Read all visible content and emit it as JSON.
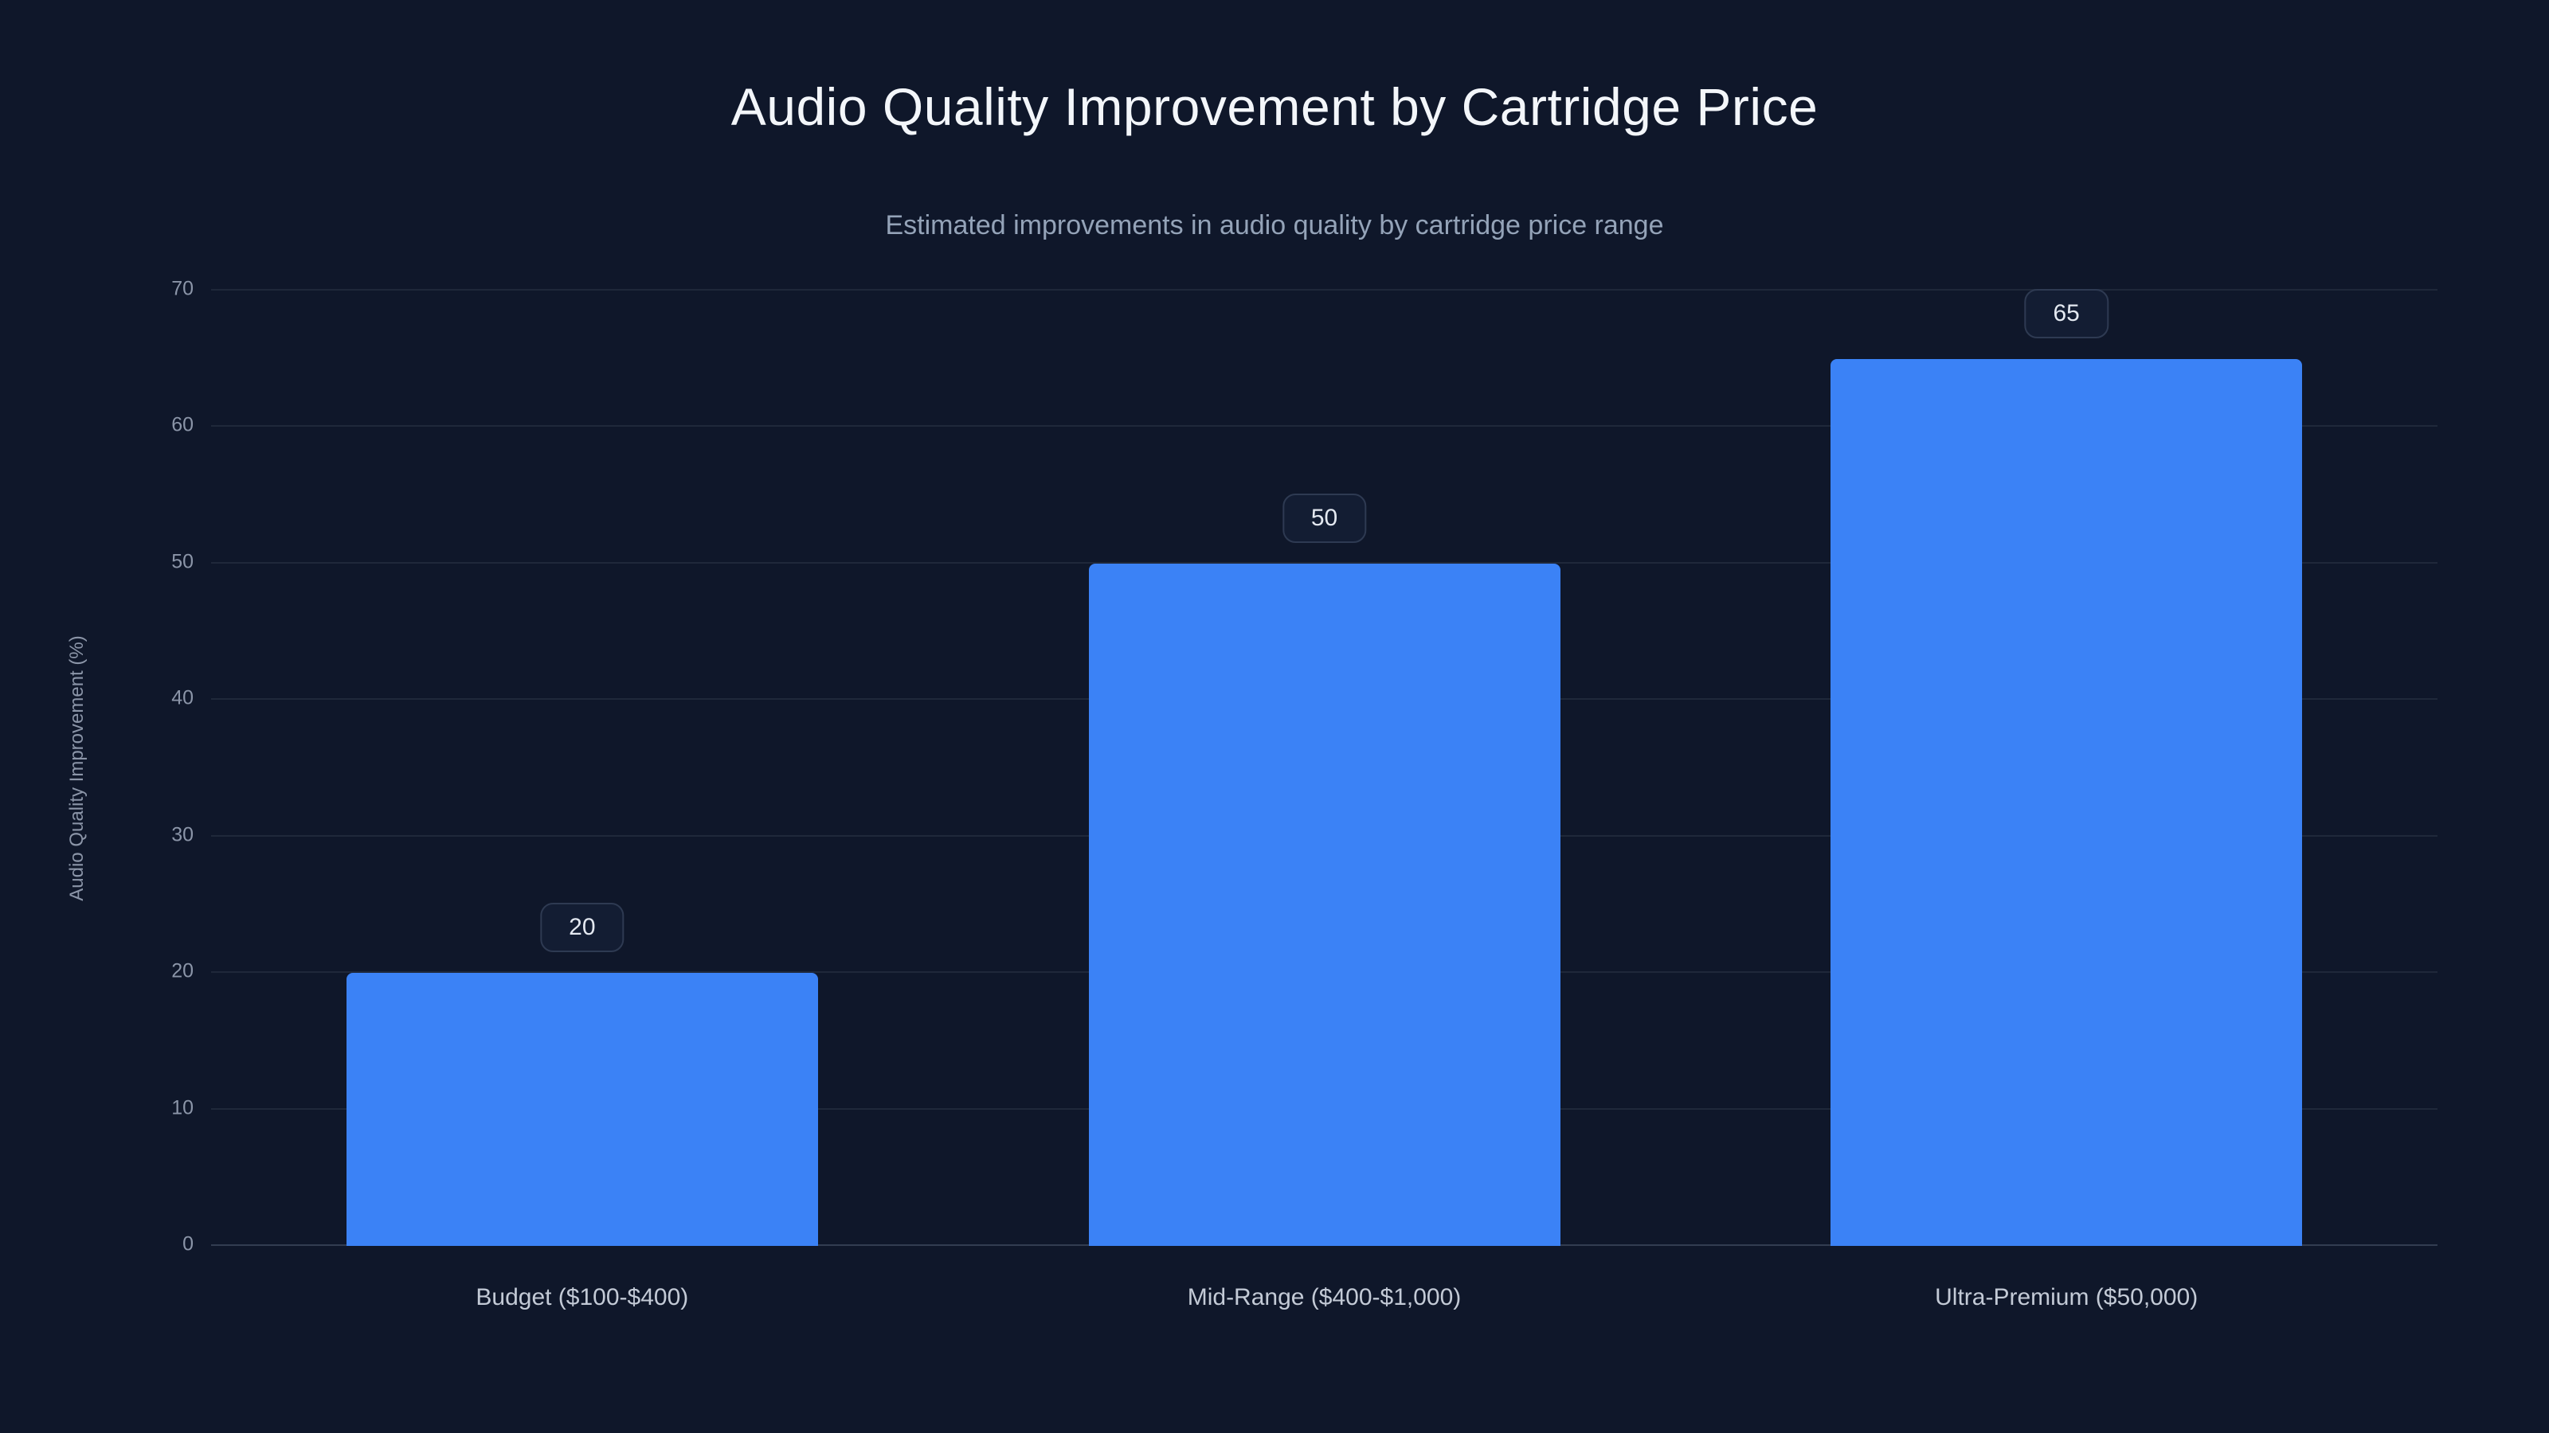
{
  "chart_data": {
    "type": "bar",
    "title": "Audio Quality Improvement by Cartridge Price",
    "subtitle": "Estimated improvements in audio quality by cartridge price range",
    "ylabel": "Audio Quality Improvement (%)",
    "xlabel": "",
    "categories": [
      "Budget ($100-$400)",
      "Mid-Range ($400-$1,000)",
      "Ultra-Premium ($50,000)"
    ],
    "values": [
      20,
      50,
      65
    ],
    "value_labels": [
      "20",
      "50",
      "65"
    ],
    "ylim": [
      0,
      70
    ],
    "yticks": [
      0,
      10,
      20,
      30,
      40,
      50,
      60,
      70
    ],
    "grid": true,
    "legend": "none",
    "bar_color": "#3b82f6",
    "background_color": "#0f172a"
  }
}
